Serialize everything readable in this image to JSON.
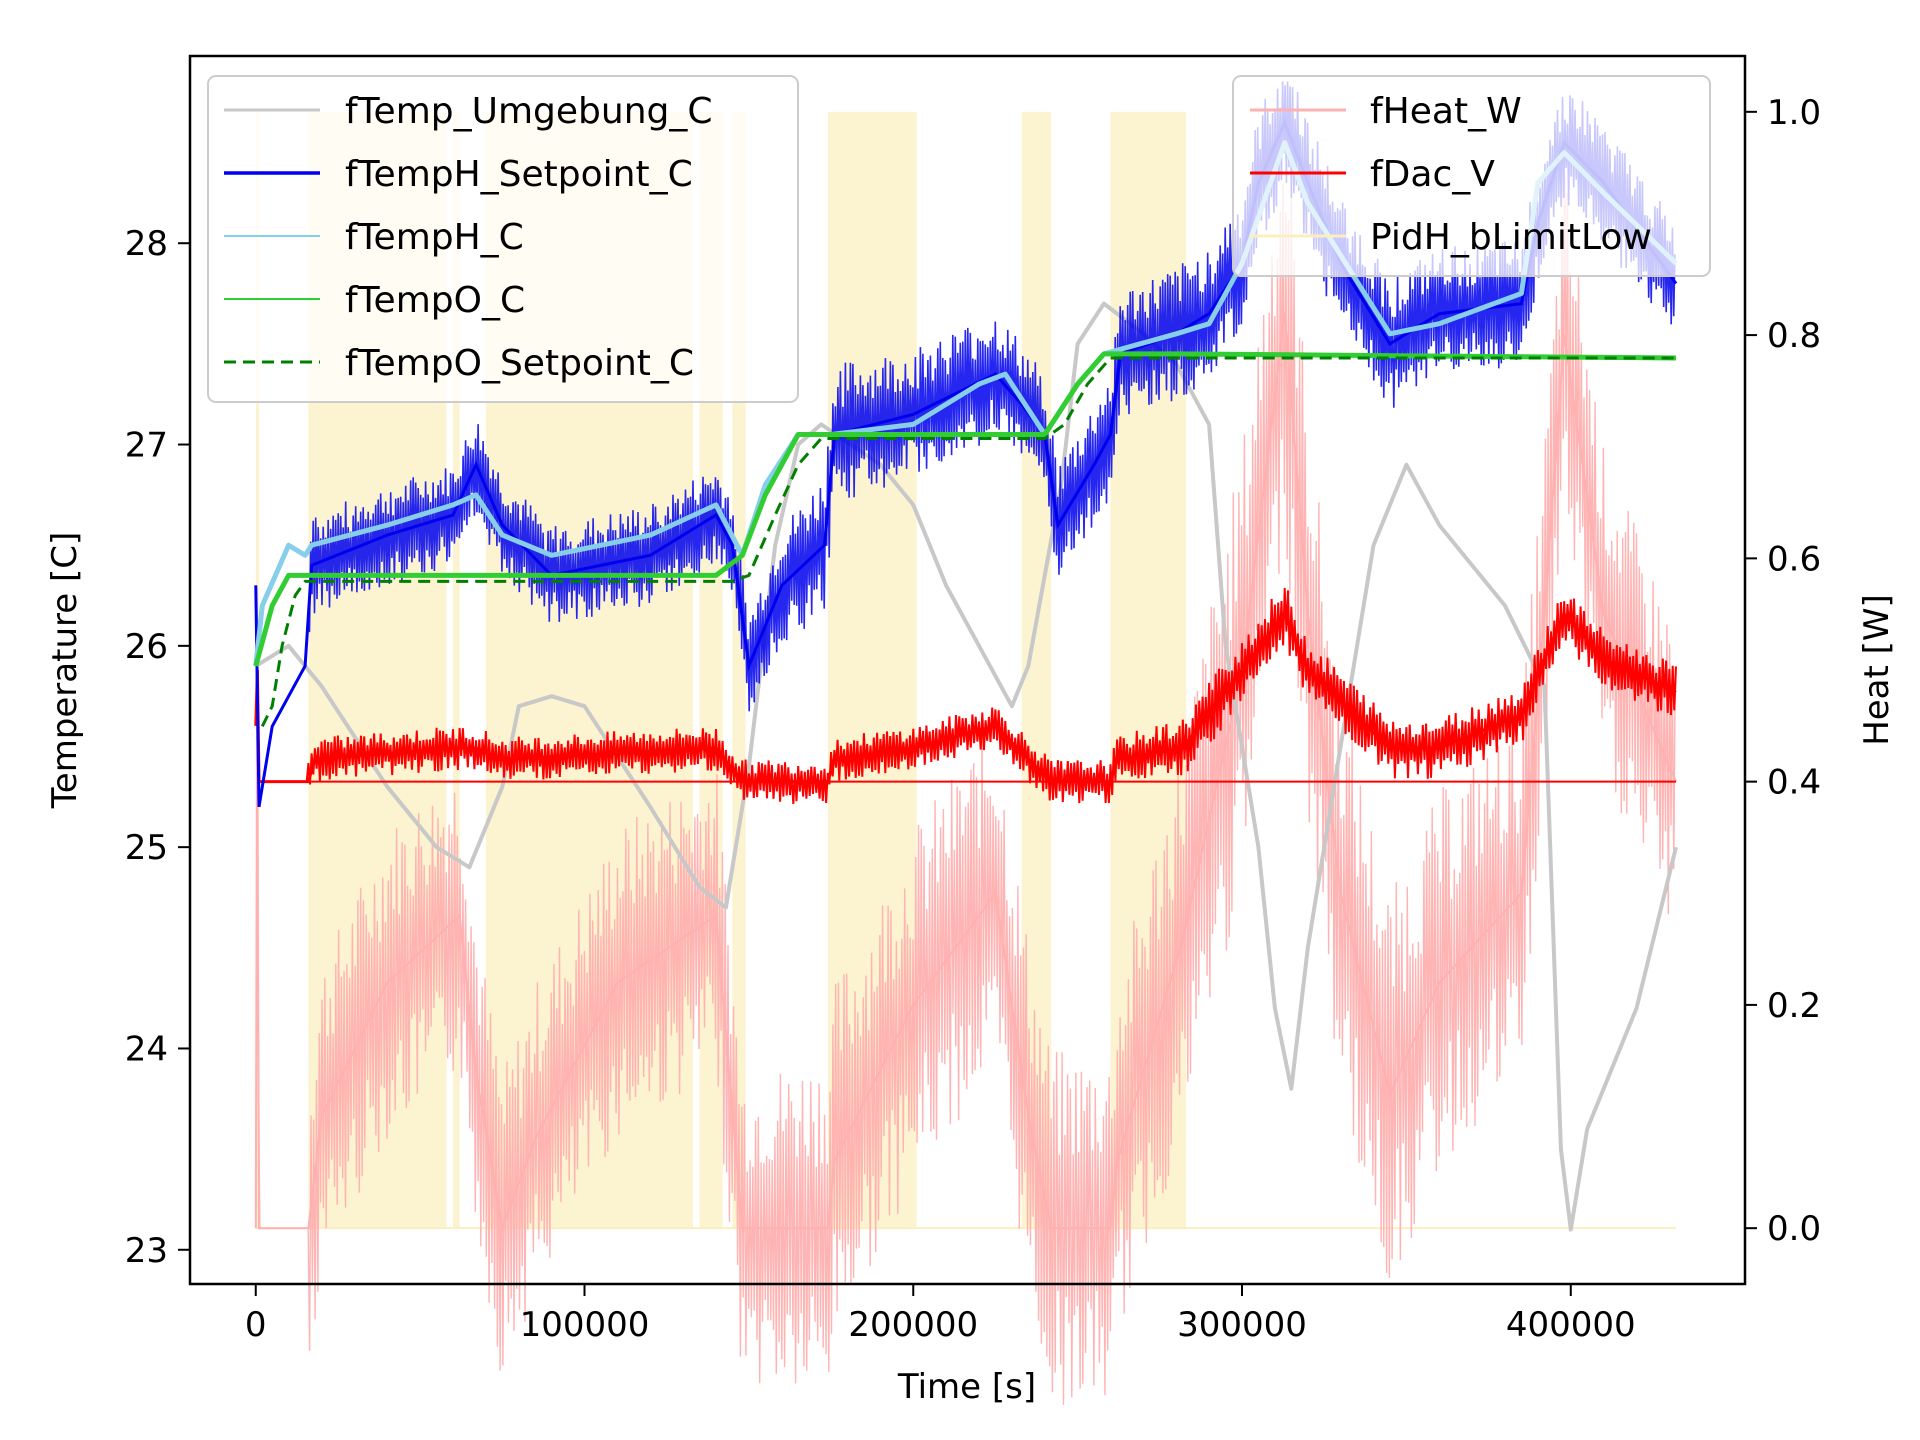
{
  "chart_data": {
    "type": "line",
    "xlabel": "Time [s]",
    "ylabel_left": "Temperature [C]",
    "ylabel_right": "Heat [W]",
    "xlim": [
      -20000,
      453000
    ],
    "ylim_left": [
      22.83,
      28.93
    ],
    "ylim_right": [
      -0.05,
      1.05
    ],
    "x_ticks": [
      0,
      100000,
      200000,
      300000,
      400000
    ],
    "x_tick_labels": [
      "0",
      "100000",
      "200000",
      "300000",
      "400000"
    ],
    "y_left_ticks": [
      23,
      24,
      25,
      26,
      27,
      28
    ],
    "y_left_tick_labels": [
      "23",
      "24",
      "25",
      "26",
      "27",
      "28"
    ],
    "y_right_ticks": [
      0.0,
      0.2,
      0.4,
      0.6,
      0.8,
      1.0
    ],
    "y_right_tick_labels": [
      "0.0",
      "0.2",
      "0.4",
      "0.6",
      "0.8",
      "1.0"
    ],
    "legend_left": {
      "placement": "upper-left",
      "entries": [
        "fTemp_Umgebung_C",
        "fTempH_Setpoint_C",
        "fTempH_C",
        "fTempO_C",
        "fTempO_Setpoint_C"
      ]
    },
    "legend_right": {
      "placement": "upper-right",
      "entries": [
        "fHeat_W",
        "fDac_V",
        "PidH_bLimitLow"
      ]
    },
    "colors": {
      "fTemp_Umgebung_C": "#c8c8c8",
      "fTempH_Setpoint_C": "#0000ee",
      "fTempH_C": "#87ceeb",
      "fTempO_C": "#32cd32",
      "fTempO_Setpoint_C": "#008000",
      "fHeat_W": "#ffb0b0",
      "fDac_V": "#ff0000",
      "PidH_bLimitLow": "#fbefc0"
    },
    "limit_low_intervals": [
      [
        0,
        1000
      ],
      [
        16000,
        58000
      ],
      [
        60000,
        62000
      ],
      [
        70000,
        133000
      ],
      [
        135000,
        142000
      ],
      [
        145000,
        149000
      ],
      [
        174000,
        201000
      ],
      [
        233000,
        242000
      ],
      [
        260000,
        283000
      ]
    ],
    "series": [
      {
        "name": "fTemp_Umgebung_C",
        "axis": "left",
        "points": [
          [
            0,
            25.9
          ],
          [
            10000,
            26.0
          ],
          [
            20000,
            25.8
          ],
          [
            40000,
            25.3
          ],
          [
            55000,
            25.0
          ],
          [
            65000,
            24.9
          ],
          [
            75000,
            25.3
          ],
          [
            80000,
            25.7
          ],
          [
            90000,
            25.75
          ],
          [
            100000,
            25.7
          ],
          [
            120000,
            25.2
          ],
          [
            135000,
            24.8
          ],
          [
            143000,
            24.7
          ],
          [
            150000,
            25.4
          ],
          [
            158000,
            26.5
          ],
          [
            165000,
            27.0
          ],
          [
            172000,
            27.1
          ],
          [
            190000,
            26.9
          ],
          [
            200000,
            26.7
          ],
          [
            210000,
            26.3
          ],
          [
            230000,
            25.7
          ],
          [
            235000,
            25.9
          ],
          [
            245000,
            26.8
          ],
          [
            250000,
            27.5
          ],
          [
            258000,
            27.7
          ],
          [
            270000,
            27.55
          ],
          [
            280000,
            27.4
          ],
          [
            290000,
            27.1
          ],
          [
            295000,
            26.0
          ],
          [
            305000,
            25.0
          ],
          [
            310000,
            24.2
          ],
          [
            315000,
            23.8
          ],
          [
            320000,
            24.5
          ],
          [
            330000,
            25.5
          ],
          [
            340000,
            26.5
          ],
          [
            350000,
            26.9
          ],
          [
            360000,
            26.6
          ],
          [
            380000,
            26.2
          ],
          [
            392000,
            25.8
          ],
          [
            397000,
            23.5
          ],
          [
            400000,
            23.1
          ],
          [
            405000,
            23.6
          ],
          [
            420000,
            24.2
          ],
          [
            432000,
            25.0
          ]
        ]
      },
      {
        "name": "fTempH_Setpoint_C",
        "axis": "left",
        "points": [
          [
            0,
            26.3
          ],
          [
            1000,
            25.2
          ],
          [
            5000,
            25.6
          ],
          [
            15000,
            25.9
          ],
          [
            17000,
            26.4
          ],
          [
            40000,
            26.55
          ],
          [
            60000,
            26.65
          ],
          [
            67000,
            26.9
          ],
          [
            75000,
            26.6
          ],
          [
            90000,
            26.35
          ],
          [
            120000,
            26.45
          ],
          [
            140000,
            26.65
          ],
          [
            145000,
            26.5
          ],
          [
            150000,
            25.9
          ],
          [
            160000,
            26.3
          ],
          [
            173000,
            26.5
          ],
          [
            176000,
            27.05
          ],
          [
            200000,
            27.15
          ],
          [
            225000,
            27.35
          ],
          [
            233000,
            27.2
          ],
          [
            240000,
            27.05
          ],
          [
            244000,
            26.6
          ],
          [
            255000,
            26.9
          ],
          [
            260000,
            27.05
          ],
          [
            263000,
            27.45
          ],
          [
            280000,
            27.55
          ],
          [
            290000,
            27.65
          ],
          [
            300000,
            27.9
          ],
          [
            305000,
            28.3
          ],
          [
            313000,
            28.6
          ],
          [
            320000,
            28.3
          ],
          [
            330000,
            27.9
          ],
          [
            345000,
            27.5
          ],
          [
            360000,
            27.65
          ],
          [
            385000,
            27.7
          ],
          [
            390000,
            28.1
          ],
          [
            398000,
            28.5
          ],
          [
            410000,
            28.3
          ],
          [
            432000,
            27.8
          ]
        ],
        "noise_band": [
          [
            16000,
            0.25
          ],
          [
            150000,
            0.25
          ],
          [
            173000,
            0.35
          ],
          [
            243000,
            0.3
          ],
          [
            300000,
            0.35
          ],
          [
            432000,
            0.3
          ]
        ]
      },
      {
        "name": "fTempH_C",
        "axis": "left",
        "points": [
          [
            0,
            25.9
          ],
          [
            2000,
            26.2
          ],
          [
            10000,
            26.5
          ],
          [
            15000,
            26.45
          ],
          [
            17000,
            26.5
          ],
          [
            40000,
            26.6
          ],
          [
            60000,
            26.7
          ],
          [
            67000,
            26.75
          ],
          [
            75000,
            26.55
          ],
          [
            90000,
            26.45
          ],
          [
            120000,
            26.55
          ],
          [
            140000,
            26.7
          ],
          [
            148000,
            26.45
          ],
          [
            155000,
            26.8
          ],
          [
            165000,
            27.05
          ],
          [
            175000,
            27.05
          ],
          [
            200000,
            27.1
          ],
          [
            220000,
            27.3
          ],
          [
            228000,
            27.35
          ],
          [
            240000,
            27.05
          ],
          [
            250000,
            27.3
          ],
          [
            258000,
            27.45
          ],
          [
            280000,
            27.55
          ],
          [
            290000,
            27.6
          ],
          [
            300000,
            27.9
          ],
          [
            313000,
            28.5
          ],
          [
            320000,
            28.2
          ],
          [
            345000,
            27.55
          ],
          [
            360000,
            27.6
          ],
          [
            385000,
            27.75
          ],
          [
            390000,
            28.3
          ],
          [
            398000,
            28.45
          ],
          [
            410000,
            28.25
          ],
          [
            432000,
            27.9
          ]
        ]
      },
      {
        "name": "fTempO_C",
        "axis": "left",
        "points": [
          [
            0,
            25.9
          ],
          [
            5000,
            26.2
          ],
          [
            10000,
            26.35
          ],
          [
            15000,
            26.35
          ],
          [
            40000,
            26.35
          ],
          [
            80000,
            26.35
          ],
          [
            140000,
            26.35
          ],
          [
            148000,
            26.45
          ],
          [
            155000,
            26.75
          ],
          [
            165000,
            27.05
          ],
          [
            175000,
            27.05
          ],
          [
            230000,
            27.05
          ],
          [
            240000,
            27.05
          ],
          [
            250000,
            27.3
          ],
          [
            258000,
            27.45
          ],
          [
            280000,
            27.45
          ],
          [
            432000,
            27.43
          ]
        ]
      },
      {
        "name": "fTempO_Setpoint_C",
        "axis": "left",
        "points": [
          [
            2000,
            25.6
          ],
          [
            5000,
            25.7
          ],
          [
            8000,
            26.0
          ],
          [
            12000,
            26.25
          ],
          [
            15000,
            26.32
          ],
          [
            145000,
            26.32
          ],
          [
            150000,
            26.35
          ],
          [
            158000,
            26.65
          ],
          [
            165000,
            26.9
          ],
          [
            172000,
            27.03
          ],
          [
            240000,
            27.03
          ],
          [
            246000,
            27.1
          ],
          [
            253000,
            27.3
          ],
          [
            260000,
            27.43
          ],
          [
            432000,
            27.43
          ]
        ]
      },
      {
        "name": "fHeat_W",
        "axis": "right",
        "points": [
          [
            0,
            0.0
          ],
          [
            400,
            0.48
          ],
          [
            1000,
            0.0
          ],
          [
            16000,
            0.0
          ],
          [
            20000,
            0.1
          ],
          [
            40000,
            0.22
          ],
          [
            62000,
            0.28
          ],
          [
            67000,
            0.14
          ],
          [
            75000,
            0.0
          ],
          [
            85000,
            0.08
          ],
          [
            110000,
            0.22
          ],
          [
            140000,
            0.28
          ],
          [
            148000,
            0.0
          ],
          [
            174000,
            0.0
          ],
          [
            176000,
            0.06
          ],
          [
            200000,
            0.2
          ],
          [
            225000,
            0.3
          ],
          [
            235000,
            0.1
          ],
          [
            242000,
            0.0
          ],
          [
            260000,
            0.0
          ],
          [
            262000,
            0.06
          ],
          [
            282000,
            0.26
          ],
          [
            300000,
            0.5
          ],
          [
            313000,
            0.82
          ],
          [
            320000,
            0.55
          ],
          [
            330000,
            0.3
          ],
          [
            345000,
            0.12
          ],
          [
            360000,
            0.22
          ],
          [
            385000,
            0.3
          ],
          [
            392000,
            0.55
          ],
          [
            398000,
            0.8
          ],
          [
            410000,
            0.55
          ],
          [
            432000,
            0.4
          ]
        ],
        "noise_band": [
          [
            16000,
            0.14
          ],
          [
            148000,
            0.14
          ],
          [
            174000,
            0.16
          ],
          [
            242000,
            0.16
          ],
          [
            260000,
            0.16
          ],
          [
            300000,
            0.2
          ],
          [
            432000,
            0.14
          ]
        ]
      },
      {
        "name": "fDac_V",
        "axis": "right",
        "points": [
          [
            0,
            0.45
          ],
          [
            500,
            0.5
          ],
          [
            1000,
            0.4
          ],
          [
            16000,
            0.4
          ],
          [
            18000,
            0.42
          ],
          [
            60000,
            0.43
          ],
          [
            67000,
            0.43
          ],
          [
            75000,
            0.42
          ],
          [
            140000,
            0.43
          ],
          [
            148000,
            0.4
          ],
          [
            174000,
            0.4
          ],
          [
            176000,
            0.42
          ],
          [
            200000,
            0.43
          ],
          [
            225000,
            0.45
          ],
          [
            235000,
            0.42
          ],
          [
            242000,
            0.4
          ],
          [
            260000,
            0.4
          ],
          [
            262000,
            0.42
          ],
          [
            282000,
            0.43
          ],
          [
            300000,
            0.5
          ],
          [
            313000,
            0.55
          ],
          [
            320000,
            0.5
          ],
          [
            345000,
            0.43
          ],
          [
            360000,
            0.43
          ],
          [
            385000,
            0.46
          ],
          [
            392000,
            0.51
          ],
          [
            398000,
            0.55
          ],
          [
            410000,
            0.51
          ],
          [
            432000,
            0.48
          ]
        ],
        "noise_band": [
          [
            16000,
            0.02
          ],
          [
            148000,
            0.02
          ],
          [
            174000,
            0.02
          ],
          [
            242000,
            0.02
          ],
          [
            260000,
            0.02
          ],
          [
            290000,
            0.03
          ],
          [
            432000,
            0.025
          ]
        ]
      }
    ]
  }
}
